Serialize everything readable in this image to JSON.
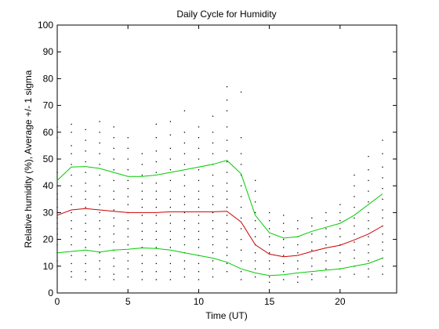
{
  "chart_data": {
    "type": "line",
    "title": "Daily Cycle for Humidity",
    "xlabel": "Time (UT)",
    "ylabel": "Relative humidity (%), Average +/- 1 sigma",
    "xlim": [
      0,
      24
    ],
    "ylim": [
      0,
      100
    ],
    "xticks": [
      0,
      5,
      10,
      15,
      20
    ],
    "yticks": [
      0,
      10,
      20,
      30,
      40,
      50,
      60,
      70,
      80,
      90,
      100
    ],
    "grid": false,
    "legend": "none",
    "x": [
      0,
      1,
      2,
      3,
      4,
      5,
      6,
      7,
      8,
      9,
      10,
      11,
      12,
      13,
      14,
      15,
      16,
      17,
      18,
      19,
      20,
      21,
      22,
      23
    ],
    "series": [
      {
        "role": "average",
        "color": "#cc0000",
        "values": [
          29,
          31,
          31.5,
          31,
          30.5,
          30,
          30,
          30,
          30.3,
          30.3,
          30.3,
          30.3,
          30.5,
          26.5,
          18,
          14.5,
          13.5,
          14,
          15.5,
          16.8,
          17.8,
          19.8,
          22,
          25
        ]
      },
      {
        "role": "average + 1 sigma",
        "color": "#00cc00",
        "values": [
          42,
          47,
          47.2,
          46.5,
          45,
          43.5,
          43.5,
          44,
          45,
          46,
          47,
          48,
          49.5,
          44.5,
          29,
          22.5,
          20.5,
          21,
          23,
          24.5,
          26,
          29,
          33,
          37
        ]
      },
      {
        "role": "average - 1 sigma",
        "color": "#00cc00",
        "values": [
          15,
          15.5,
          16,
          15.3,
          16,
          16.3,
          16.8,
          16.6,
          16,
          15,
          14,
          13,
          11.5,
          9,
          7.5,
          6.5,
          6.8,
          7.5,
          8,
          8.5,
          9,
          10,
          11,
          13
        ]
      }
    ],
    "scatter": {
      "color": "#000000",
      "points": [
        [
          0,
          62
        ],
        [
          0,
          58
        ],
        [
          0,
          50
        ],
        [
          0,
          45
        ],
        [
          0,
          40
        ],
        [
          0,
          37
        ],
        [
          0,
          35
        ],
        [
          0,
          32
        ],
        [
          0,
          30
        ],
        [
          0,
          28
        ],
        [
          0,
          26
        ],
        [
          0,
          24
        ],
        [
          0,
          22
        ],
        [
          0,
          20
        ],
        [
          0,
          18
        ],
        [
          0,
          15
        ],
        [
          0,
          12
        ],
        [
          0,
          10
        ],
        [
          1,
          63
        ],
        [
          1,
          60
        ],
        [
          1,
          55
        ],
        [
          1,
          52
        ],
        [
          1,
          48
        ],
        [
          1,
          44
        ],
        [
          1,
          40
        ],
        [
          1,
          36
        ],
        [
          1,
          33
        ],
        [
          1,
          30
        ],
        [
          1,
          27
        ],
        [
          1,
          24
        ],
        [
          1,
          21
        ],
        [
          1,
          18
        ],
        [
          1,
          14
        ],
        [
          1,
          11
        ],
        [
          1,
          8
        ],
        [
          1,
          6
        ],
        [
          2,
          61
        ],
        [
          2,
          57
        ],
        [
          2,
          53
        ],
        [
          2,
          49
        ],
        [
          2,
          45
        ],
        [
          2,
          41
        ],
        [
          2,
          38
        ],
        [
          2,
          35
        ],
        [
          2,
          32
        ],
        [
          2,
          29
        ],
        [
          2,
          26
        ],
        [
          2,
          23
        ],
        [
          2,
          20
        ],
        [
          2,
          17
        ],
        [
          2,
          14
        ],
        [
          2,
          11
        ],
        [
          2,
          8
        ],
        [
          2,
          5
        ],
        [
          3,
          64
        ],
        [
          3,
          60
        ],
        [
          3,
          56
        ],
        [
          3,
          52
        ],
        [
          3,
          48
        ],
        [
          3,
          44
        ],
        [
          3,
          40
        ],
        [
          3,
          36
        ],
        [
          3,
          33
        ],
        [
          3,
          30
        ],
        [
          3,
          27
        ],
        [
          3,
          24
        ],
        [
          3,
          21
        ],
        [
          3,
          18
        ],
        [
          3,
          15
        ],
        [
          3,
          12
        ],
        [
          3,
          9
        ],
        [
          3,
          6
        ],
        [
          4,
          62
        ],
        [
          4,
          58
        ],
        [
          4,
          54
        ],
        [
          4,
          50
        ],
        [
          4,
          46
        ],
        [
          4,
          42
        ],
        [
          4,
          38
        ],
        [
          4,
          35
        ],
        [
          4,
          31
        ],
        [
          4,
          28
        ],
        [
          4,
          25
        ],
        [
          4,
          22
        ],
        [
          4,
          19
        ],
        [
          4,
          16
        ],
        [
          4,
          13
        ],
        [
          4,
          10
        ],
        [
          4,
          7
        ],
        [
          4,
          5
        ],
        [
          5,
          58
        ],
        [
          5,
          54
        ],
        [
          5,
          50
        ],
        [
          5,
          46
        ],
        [
          5,
          42
        ],
        [
          5,
          39
        ],
        [
          5,
          36
        ],
        [
          5,
          33
        ],
        [
          5,
          30
        ],
        [
          5,
          27
        ],
        [
          5,
          24
        ],
        [
          5,
          21
        ],
        [
          5,
          18
        ],
        [
          5,
          15
        ],
        [
          5,
          12
        ],
        [
          5,
          9
        ],
        [
          5,
          6
        ],
        [
          6,
          52
        ],
        [
          6,
          48
        ],
        [
          6,
          44
        ],
        [
          6,
          41
        ],
        [
          6,
          38
        ],
        [
          6,
          35
        ],
        [
          6,
          32
        ],
        [
          6,
          29
        ],
        [
          6,
          26
        ],
        [
          6,
          23
        ],
        [
          6,
          20
        ],
        [
          6,
          17
        ],
        [
          6,
          14
        ],
        [
          6,
          11
        ],
        [
          6,
          8
        ],
        [
          6,
          5
        ],
        [
          7,
          63
        ],
        [
          7,
          58
        ],
        [
          7,
          53
        ],
        [
          7,
          49
        ],
        [
          7,
          45
        ],
        [
          7,
          41
        ],
        [
          7,
          38
        ],
        [
          7,
          35
        ],
        [
          7,
          32
        ],
        [
          7,
          29
        ],
        [
          7,
          26
        ],
        [
          7,
          23
        ],
        [
          7,
          20
        ],
        [
          7,
          17
        ],
        [
          7,
          14
        ],
        [
          7,
          11
        ],
        [
          7,
          8
        ],
        [
          7,
          5
        ],
        [
          8,
          64
        ],
        [
          8,
          59
        ],
        [
          8,
          54
        ],
        [
          8,
          50
        ],
        [
          8,
          46
        ],
        [
          8,
          42
        ],
        [
          8,
          38
        ],
        [
          8,
          35
        ],
        [
          8,
          32
        ],
        [
          8,
          29
        ],
        [
          8,
          26
        ],
        [
          8,
          23
        ],
        [
          8,
          20
        ],
        [
          8,
          17
        ],
        [
          8,
          14
        ],
        [
          8,
          11
        ],
        [
          8,
          8
        ],
        [
          8,
          5
        ],
        [
          9,
          68
        ],
        [
          9,
          60
        ],
        [
          9,
          56
        ],
        [
          9,
          52
        ],
        [
          9,
          48
        ],
        [
          9,
          44
        ],
        [
          9,
          40
        ],
        [
          9,
          36
        ],
        [
          9,
          33
        ],
        [
          9,
          30
        ],
        [
          9,
          27
        ],
        [
          9,
          24
        ],
        [
          9,
          21
        ],
        [
          9,
          18
        ],
        [
          9,
          15
        ],
        [
          9,
          12
        ],
        [
          9,
          9
        ],
        [
          9,
          6
        ],
        [
          10,
          62
        ],
        [
          10,
          58
        ],
        [
          10,
          54
        ],
        [
          10,
          50
        ],
        [
          10,
          46
        ],
        [
          10,
          42
        ],
        [
          10,
          38
        ],
        [
          10,
          35
        ],
        [
          10,
          32
        ],
        [
          10,
          29
        ],
        [
          10,
          26
        ],
        [
          10,
          23
        ],
        [
          10,
          20
        ],
        [
          10,
          17
        ],
        [
          10,
          14
        ],
        [
          10,
          11
        ],
        [
          10,
          8
        ],
        [
          10,
          5
        ],
        [
          11,
          66
        ],
        [
          11,
          60
        ],
        [
          11,
          56
        ],
        [
          11,
          52
        ],
        [
          11,
          48
        ],
        [
          11,
          44
        ],
        [
          11,
          40
        ],
        [
          11,
          36
        ],
        [
          11,
          33
        ],
        [
          11,
          30
        ],
        [
          11,
          27
        ],
        [
          11,
          24
        ],
        [
          11,
          21
        ],
        [
          11,
          18
        ],
        [
          11,
          15
        ],
        [
          11,
          12
        ],
        [
          11,
          9
        ],
        [
          11,
          6
        ],
        [
          12,
          77
        ],
        [
          12,
          72
        ],
        [
          12,
          68
        ],
        [
          12,
          62
        ],
        [
          12,
          57
        ],
        [
          12,
          53
        ],
        [
          12,
          49
        ],
        [
          12,
          45
        ],
        [
          12,
          41
        ],
        [
          12,
          38
        ],
        [
          12,
          35
        ],
        [
          12,
          32
        ],
        [
          12,
          29
        ],
        [
          12,
          26
        ],
        [
          12,
          23
        ],
        [
          12,
          20
        ],
        [
          12,
          17
        ],
        [
          12,
          14
        ],
        [
          12,
          11
        ],
        [
          12,
          8
        ],
        [
          13,
          75
        ],
        [
          13,
          58
        ],
        [
          13,
          52
        ],
        [
          13,
          48
        ],
        [
          13,
          44
        ],
        [
          13,
          40
        ],
        [
          13,
          36
        ],
        [
          13,
          32
        ],
        [
          13,
          28
        ],
        [
          13,
          24
        ],
        [
          13,
          20
        ],
        [
          13,
          16
        ],
        [
          13,
          12
        ],
        [
          13,
          8
        ],
        [
          13,
          5
        ],
        [
          14,
          42
        ],
        [
          14,
          38
        ],
        [
          14,
          34
        ],
        [
          14,
          30
        ],
        [
          14,
          27
        ],
        [
          14,
          24
        ],
        [
          14,
          21
        ],
        [
          14,
          18
        ],
        [
          14,
          15
        ],
        [
          14,
          12
        ],
        [
          14,
          9
        ],
        [
          14,
          6
        ],
        [
          15,
          30
        ],
        [
          15,
          27
        ],
        [
          15,
          24
        ],
        [
          15,
          21
        ],
        [
          15,
          18
        ],
        [
          15,
          15
        ],
        [
          15,
          12
        ],
        [
          15,
          9
        ],
        [
          15,
          6
        ],
        [
          15,
          4
        ],
        [
          16,
          29
        ],
        [
          16,
          26
        ],
        [
          16,
          23
        ],
        [
          16,
          20
        ],
        [
          16,
          17
        ],
        [
          16,
          14
        ],
        [
          16,
          11
        ],
        [
          16,
          8
        ],
        [
          16,
          5
        ],
        [
          17,
          27
        ],
        [
          17,
          24
        ],
        [
          17,
          21
        ],
        [
          17,
          18
        ],
        [
          17,
          15
        ],
        [
          17,
          12
        ],
        [
          17,
          9
        ],
        [
          17,
          6
        ],
        [
          17,
          4
        ],
        [
          18,
          28
        ],
        [
          18,
          25
        ],
        [
          18,
          22
        ],
        [
          18,
          19
        ],
        [
          18,
          16
        ],
        [
          18,
          13
        ],
        [
          18,
          10
        ],
        [
          18,
          7
        ],
        [
          18,
          5
        ],
        [
          19,
          30
        ],
        [
          19,
          27
        ],
        [
          19,
          24
        ],
        [
          19,
          21
        ],
        [
          19,
          18
        ],
        [
          19,
          15
        ],
        [
          19,
          12
        ],
        [
          19,
          9
        ],
        [
          19,
          6
        ],
        [
          20,
          33
        ],
        [
          20,
          30
        ],
        [
          20,
          27
        ],
        [
          20,
          24
        ],
        [
          20,
          21
        ],
        [
          20,
          18
        ],
        [
          20,
          15
        ],
        [
          20,
          12
        ],
        [
          20,
          9
        ],
        [
          20,
          6
        ],
        [
          21,
          44
        ],
        [
          21,
          40
        ],
        [
          21,
          36
        ],
        [
          21,
          32
        ],
        [
          21,
          28
        ],
        [
          21,
          25
        ],
        [
          21,
          22
        ],
        [
          21,
          19
        ],
        [
          21,
          16
        ],
        [
          21,
          13
        ],
        [
          21,
          10
        ],
        [
          21,
          7
        ],
        [
          22,
          51
        ],
        [
          22,
          46
        ],
        [
          22,
          42
        ],
        [
          22,
          38
        ],
        [
          22,
          34
        ],
        [
          22,
          30
        ],
        [
          22,
          27
        ],
        [
          22,
          24
        ],
        [
          22,
          21
        ],
        [
          22,
          18
        ],
        [
          22,
          15
        ],
        [
          22,
          12
        ],
        [
          22,
          9
        ],
        [
          22,
          6
        ],
        [
          23,
          57
        ],
        [
          23,
          52
        ],
        [
          23,
          47
        ],
        [
          23,
          43
        ],
        [
          23,
          39
        ],
        [
          23,
          35
        ],
        [
          23,
          31
        ],
        [
          23,
          28
        ],
        [
          23,
          25
        ],
        [
          23,
          22
        ],
        [
          23,
          19
        ],
        [
          23,
          16
        ],
        [
          23,
          13
        ],
        [
          23,
          10
        ],
        [
          23,
          7
        ]
      ]
    }
  }
}
